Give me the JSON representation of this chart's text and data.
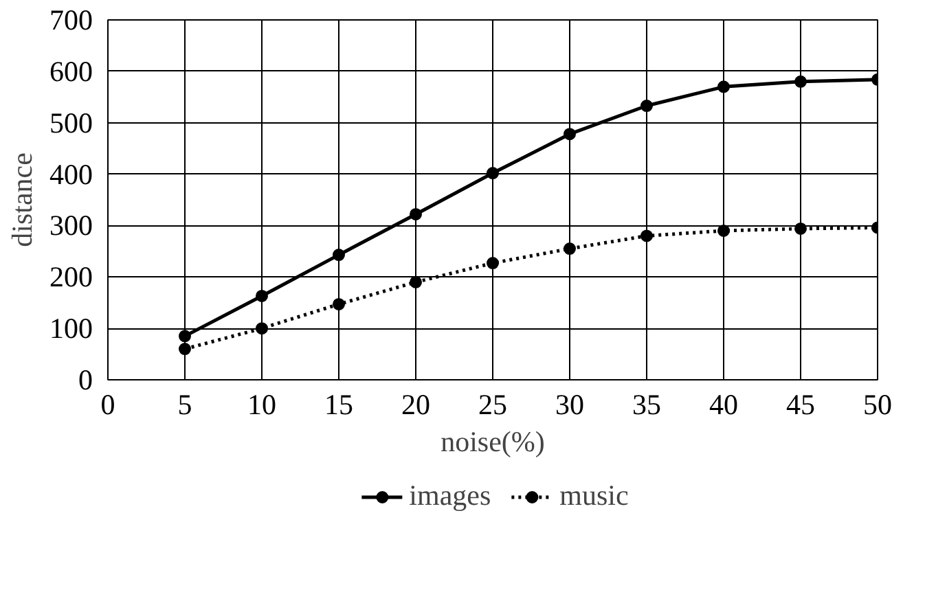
{
  "chart_data": {
    "type": "line",
    "xlabel": "noise(%)",
    "ylabel": "distance",
    "x": [
      5,
      10,
      15,
      20,
      25,
      30,
      35,
      40,
      45,
      50
    ],
    "series": [
      {
        "name": "images",
        "color": "#000000",
        "line_style": "solid",
        "values": [
          85,
          163,
          243,
          322,
          402,
          478,
          533,
          570,
          580,
          584
        ]
      },
      {
        "name": "music",
        "color": "#000000",
        "line_style": "dotted",
        "values": [
          60,
          100,
          147,
          190,
          227,
          255,
          280,
          290,
          294,
          296
        ]
      }
    ],
    "xlim": [
      0,
      50
    ],
    "xticks": [
      0,
      5,
      10,
      15,
      20,
      25,
      30,
      35,
      40,
      45,
      50
    ],
    "ylim": [
      0,
      700
    ],
    "yticks": [
      0,
      100,
      200,
      300,
      400,
      500,
      600,
      700
    ],
    "grid": true,
    "legend": "bottom",
    "marker": "circle"
  }
}
